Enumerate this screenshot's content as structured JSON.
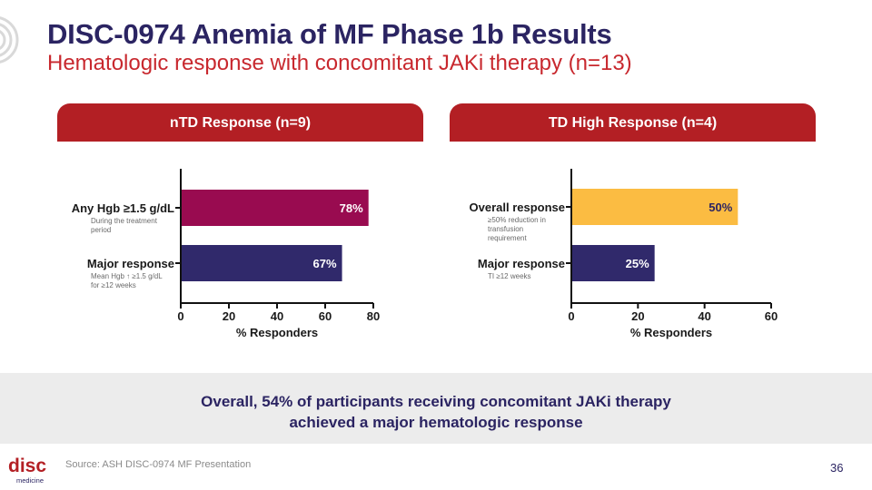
{
  "header": {
    "title": "DISC-0974 Anemia of MF Phase 1b Results",
    "subtitle": "Hematologic response with concomitant JAKi therapy (n=13)"
  },
  "colors": {
    "navy": "#2b2462",
    "brand_red": "#b31f24",
    "magenta": "#990b50",
    "purple": "#30296b",
    "gold": "#fbbc42"
  },
  "chart_data": [
    {
      "type": "bar",
      "orientation": "horizontal",
      "title": "nTD Response (n=9)",
      "categories": [
        "Any Hgb ≥1.5 g/dL",
        "Major response"
      ],
      "notes": [
        "During the treatment period",
        "Mean Hgb ↑ ≥1.5 g/dL for ≥12 weeks"
      ],
      "values": [
        78,
        67
      ],
      "value_labels": [
        "78%",
        "67%"
      ],
      "bar_colors": [
        "#990b50",
        "#30296b"
      ],
      "xlabel": "% Responders",
      "xlim": [
        0,
        80
      ],
      "xticks": [
        0,
        20,
        40,
        60,
        80
      ],
      "ylabel": ""
    },
    {
      "type": "bar",
      "orientation": "horizontal",
      "title": "TD High Response (n=4)",
      "categories": [
        "Overall response",
        "Major response"
      ],
      "notes": [
        "≥50% reduction in transfusion requirement",
        "TI ≥12 weeks"
      ],
      "values": [
        50,
        25
      ],
      "value_labels": [
        "50%",
        "25%"
      ],
      "bar_colors": [
        "#fbbc42",
        "#30296b"
      ],
      "xlabel": "% Responders",
      "xlim": [
        0,
        60
      ],
      "xticks": [
        0,
        20,
        40,
        60
      ],
      "ylabel": ""
    }
  ],
  "summary": {
    "line1": "Overall, 54% of participants receiving concomitant JAKi therapy",
    "line2": "achieved a major hematologic response"
  },
  "footer": {
    "logo_text": "disc",
    "logo_sub": "medicine",
    "source": "Source: ASH DISC-0974 MF Presentation",
    "page": "36"
  }
}
